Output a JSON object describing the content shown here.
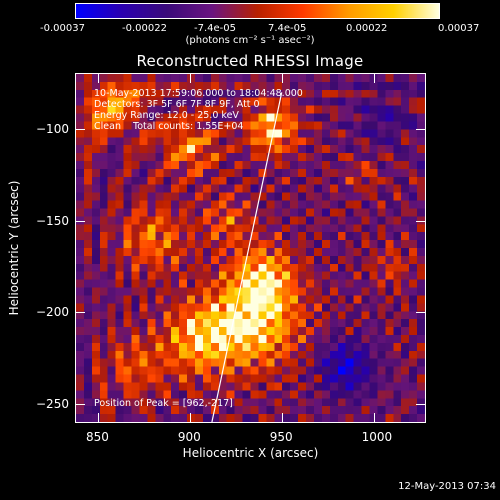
{
  "colorbar": {
    "tick_labels": [
      "-0.00037",
      "-0.00022",
      "-7.4e-05",
      "7.4e-05",
      "0.00022",
      "0.00037"
    ],
    "unit_label": "(photons cm⁻² s⁻¹ asec⁻²)",
    "colors": [
      "#0000ff",
      "#2a00b0",
      "#3a0a7a",
      "#6a1480",
      "#b82000",
      "#ff3a00",
      "#ff9a00",
      "#ffd000",
      "#ffffe0"
    ]
  },
  "title": "Reconstructed RHESSI Image",
  "info": {
    "time_range": "10-May-2013 17:59:06.000 to 18:04:48.000",
    "detectors": "Detectors: 3F 5F 6F 7F 8F 9F, Att 0",
    "energy": "Energy Range: 12.0 - 25.0 keV",
    "method": "Clean    Total counts: 1.55E+04",
    "peak": "Position of Peak = [962,-217]"
  },
  "chart_data": {
    "type": "heatmap",
    "title": "Reconstructed RHESSI Image",
    "xlabel": "Heliocentric X (arcsec)",
    "ylabel": "Heliocentric Y (arcsec)",
    "x_range": [
      838,
      1028
    ],
    "y_range": [
      -260,
      -70
    ],
    "x_ticks": [
      850,
      900,
      950,
      1000
    ],
    "y_ticks": [
      -100,
      -150,
      -200,
      -250
    ],
    "value_range": [
      -0.00037,
      0.00037
    ],
    "limb_line": {
      "x": [
        912,
        950
      ],
      "y": [
        -260,
        -80
      ]
    },
    "peak": {
      "x": 962,
      "y": -217
    },
    "sources": [
      {
        "x": 935,
        "y": -205,
        "amplitude": 0.00034,
        "sigma": 18
      },
      {
        "x": 905,
        "y": -215,
        "amplitude": 0.00026,
        "sigma": 14
      },
      {
        "x": 940,
        "y": -180,
        "amplitude": 0.00024,
        "sigma": 12
      },
      {
        "x": 945,
        "y": -100,
        "amplitude": 0.0003,
        "sigma": 10
      },
      {
        "x": 900,
        "y": -110,
        "amplitude": 0.00022,
        "sigma": 11
      },
      {
        "x": 880,
        "y": -160,
        "amplitude": 0.0002,
        "sigma": 13
      },
      {
        "x": 860,
        "y": -90,
        "amplitude": 0.0002,
        "sigma": 12
      },
      {
        "x": 920,
        "y": -150,
        "amplitude": 0.00016,
        "sigma": 10
      },
      {
        "x": 870,
        "y": -230,
        "amplitude": 0.00016,
        "sigma": 12
      },
      {
        "x": 1010,
        "y": -175,
        "amplitude": 0.00012,
        "sigma": 8
      },
      {
        "x": 995,
        "y": -125,
        "amplitude": 0.0001,
        "sigma": 7
      },
      {
        "x": 985,
        "y": -230,
        "amplitude": -0.00028,
        "sigma": 10
      },
      {
        "x": 1005,
        "y": -95,
        "amplitude": -0.00012,
        "sigma": 10
      }
    ]
  },
  "timestamp": "12-May-2013 07:34"
}
